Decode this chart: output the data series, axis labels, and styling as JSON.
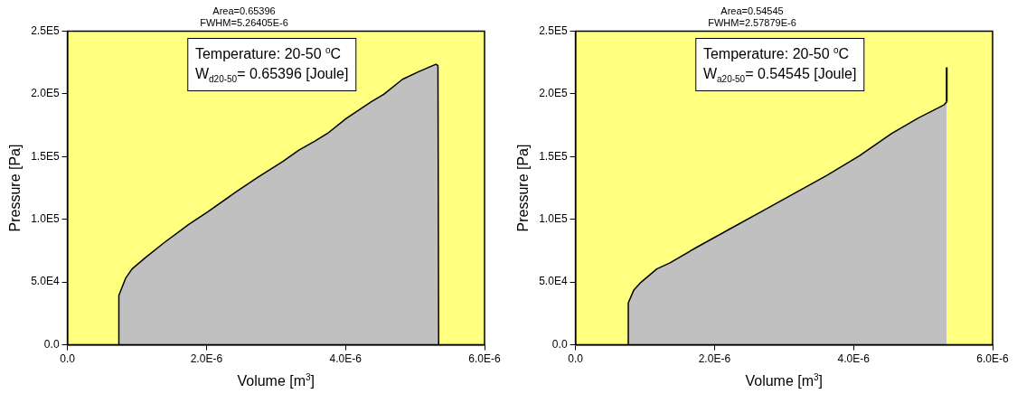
{
  "chart_data": [
    {
      "type": "area",
      "title": "Area=0.65396",
      "subtitle": "FWHM=5.26405E-6",
      "xlabel": "Volume [m$^{3}$]",
      "ylabel": "Pressure [Pa]",
      "annotations": [
        "Temperature: 20-50 $^{o}$C",
        "W$_{d20-50}$= 0.65396 [Joule]"
      ],
      "x": [
        7.4e-07,
        7.4e-07,
        8.4e-07,
        9.3e-07,
        1.11e-06,
        1.38e-06,
        1.74e-06,
        2.02e-06,
        2.42e-06,
        2.74e-06,
        3.1e-06,
        3.33e-06,
        3.56e-06,
        3.74e-06,
        4.01e-06,
        4.37e-06,
        4.55e-06,
        4.82e-06,
        5.05e-06,
        5.3e-06,
        5.33e-06,
        5.34e-06
      ],
      "series": [
        {
          "color": "#c0c0c0",
          "values": [
            0,
            39300,
            53300,
            60500,
            68900,
            80900,
            95700,
            106000,
            121600,
            133600,
            146100,
            155200,
            162400,
            168400,
            180400,
            193600,
            199600,
            211600,
            217600,
            223600,
            222400,
            0
          ]
        }
      ],
      "xlim": [
        0,
        6e-06
      ],
      "xticks": [
        {
          "value": 0,
          "label": "0.0"
        },
        {
          "value": 2e-06,
          "label": "2.0E-6"
        },
        {
          "value": 4e-06,
          "label": "4.0E-6"
        },
        {
          "value": 6e-06,
          "label": "6.0E-6"
        }
      ],
      "ylim": [
        0,
        250000
      ],
      "yticks": [
        {
          "value": 0,
          "label": "0.0"
        },
        {
          "value": 50000,
          "label": "5.0E4"
        },
        {
          "value": 100000,
          "label": "1.0E5"
        },
        {
          "value": 150000,
          "label": "1.5E5"
        },
        {
          "value": 200000,
          "label": "2.0E5"
        },
        {
          "value": 250000,
          "label": "2.5E5"
        }
      ],
      "grid": false,
      "legend": false,
      "marker": "none",
      "line_style": "solid"
    },
    {
      "type": "area",
      "title": "Area=0.54545",
      "subtitle": "FWHM=2.57879E-6",
      "xlabel": "Volume [m$^{3}$]",
      "ylabel": "Pressure [Pa]",
      "annotations": [
        "Temperature: 20-50 $^{o}$C",
        "W$_{a20-50}$= 0.54545 [Joule]"
      ],
      "x": [
        7.6e-07,
        7.6e-07,
        8.4e-07,
        9.4e-07,
        1.17e-06,
        1.36e-06,
        1.73e-06,
        2.2e-06,
        2.67e-06,
        3.14e-06,
        3.61e-06,
        4.08e-06,
        4.55e-06,
        4.92e-06,
        5.3e-06,
        5.34e-06
      ],
      "series": [
        {
          "color": "#c0c0c0",
          "values": [
            0,
            33400,
            43700,
            49700,
            60500,
            65300,
            77300,
            91700,
            106000,
            120400,
            134800,
            150400,
            168400,
            180400,
            191200,
            193600
          ]
        },
        {
          "type": "line",
          "color": "#000000",
          "x": [
            5.34e-06,
            5.34e-06
          ],
          "values": [
            193600,
            221200
          ]
        }
      ],
      "xlim": [
        0,
        6e-06
      ],
      "xticks": [
        {
          "value": 0,
          "label": "0.0"
        },
        {
          "value": 2e-06,
          "label": "2.0E-6"
        },
        {
          "value": 4e-06,
          "label": "4.0E-6"
        },
        {
          "value": 6e-06,
          "label": "6.0E-6"
        }
      ],
      "ylim": [
        0,
        250000
      ],
      "yticks": [
        {
          "value": 0,
          "label": "0.0"
        },
        {
          "value": 50000,
          "label": "5.0E4"
        },
        {
          "value": 100000,
          "label": "1.0E5"
        },
        {
          "value": 150000,
          "label": "1.5E5"
        },
        {
          "value": 200000,
          "label": "2.0E5"
        },
        {
          "value": 250000,
          "label": "2.5E5"
        }
      ],
      "grid": false,
      "legend": false,
      "marker": "none",
      "line_style": "solid"
    }
  ]
}
